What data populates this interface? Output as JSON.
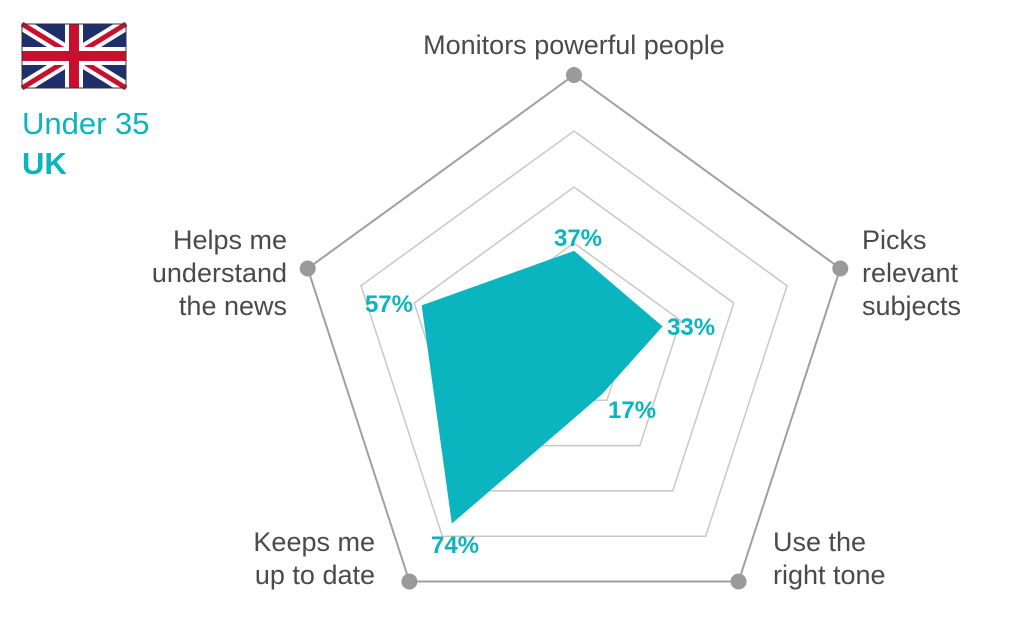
{
  "header": {
    "line1": "Under 35",
    "line2": "UK",
    "flag_icon": "uk-flag-icon"
  },
  "colors": {
    "accent": "#0bb5c0",
    "grid": "#c8c8c8",
    "outer": "#a0a0a0",
    "text": "#4a4a4a"
  },
  "chart_data": {
    "type": "radar",
    "range": [
      0,
      100
    ],
    "rings": 5,
    "categories": [
      {
        "lines": [
          "Monitors powerful people"
        ],
        "value": 37,
        "value_label": "37%"
      },
      {
        "lines": [
          "Picks",
          "relevant",
          "subjects"
        ],
        "value": 33,
        "value_label": "33%"
      },
      {
        "lines": [
          "Use the",
          "right tone"
        ],
        "value": 17,
        "value_label": "17%"
      },
      {
        "lines": [
          "Keeps me",
          "up to date"
        ],
        "value": 74,
        "value_label": "74%"
      },
      {
        "lines": [
          "Helps me",
          "understand",
          "the news"
        ],
        "value": 57,
        "value_label": "57%"
      }
    ]
  }
}
